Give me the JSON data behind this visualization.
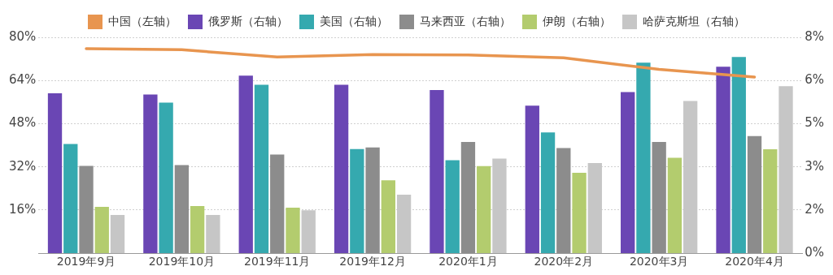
{
  "chart_data": {
    "type": "bar",
    "categories": [
      "2019年9月",
      "2019年10月",
      "2019年11月",
      "2019年12月",
      "2020年1月",
      "2020年2月",
      "2020年3月",
      "2020年4月"
    ],
    "series": [
      {
        "name": "中国（左轴）",
        "type": "line",
        "axis": "y",
        "color": "#e8954f",
        "values": [
          75.8,
          75.4,
          72.7,
          73.6,
          73.5,
          72.4,
          68.1,
          65.3
        ]
      },
      {
        "name": "俄罗斯（右轴）",
        "axis": "y2",
        "color": "#6a46b4",
        "values": [
          5.93,
          5.88,
          6.58,
          6.24,
          6.05,
          5.47,
          5.97,
          6.91
        ]
      },
      {
        "name": "美国（右轴）",
        "axis": "y2",
        "color": "#35a9af",
        "values": [
          4.05,
          5.58,
          6.24,
          3.86,
          3.45,
          4.48,
          7.06,
          7.27
        ]
      },
      {
        "name": "马来西亚（右轴）",
        "axis": "y2",
        "color": "#8c8c8c",
        "values": [
          3.24,
          3.27,
          3.66,
          3.92,
          4.12,
          3.9,
          4.12,
          4.34
        ]
      },
      {
        "name": "伊朗（右轴）",
        "axis": "y2",
        "color": "#b3cc6e",
        "values": [
          1.72,
          1.75,
          1.69,
          2.7,
          3.23,
          2.98,
          3.54,
          3.85
        ]
      },
      {
        "name": "哈萨克斯坦（右轴）",
        "axis": "y2",
        "color": "#c6c6c6",
        "values": [
          1.42,
          1.42,
          1.59,
          2.17,
          3.51,
          3.34,
          5.64,
          6.19
        ]
      }
    ],
    "ylim": [
      0,
      80
    ],
    "yticks": [
      {
        "value": 0,
        "label": null
      },
      {
        "value": 16,
        "label": "16%"
      },
      {
        "value": 32,
        "label": "32%"
      },
      {
        "value": 48,
        "label": "48%"
      },
      {
        "value": 64,
        "label": "64%"
      },
      {
        "value": 80,
        "label": "80%"
      }
    ],
    "y2lim": [
      0,
      8
    ],
    "y2ticks": [
      {
        "value": 0,
        "label": "0%"
      },
      {
        "value": 1.6,
        "label": "2%"
      },
      {
        "value": 3.2,
        "label": "3%"
      },
      {
        "value": 4.8,
        "label": "5%"
      },
      {
        "value": 6.4,
        "label": "6%"
      },
      {
        "value": 8,
        "label": "8%"
      }
    ],
    "grid": "y",
    "legend": "top",
    "marker": "none",
    "line_style": "solid"
  }
}
